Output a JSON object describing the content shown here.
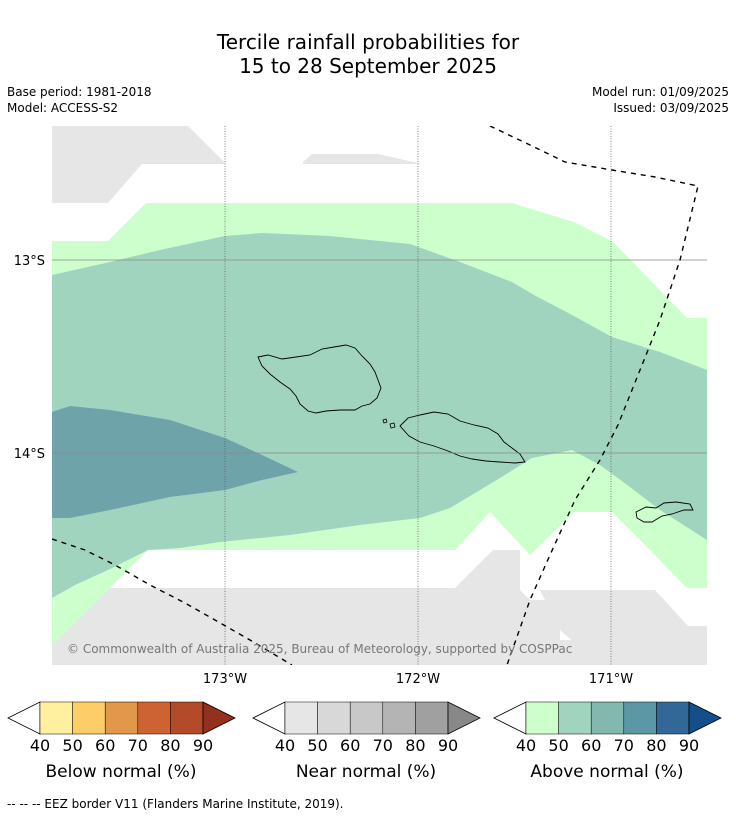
{
  "title_line1": "Tercile rainfall probabilities for",
  "title_line2": "15 to 28 September 2025",
  "base_period": "Base period: 1981-2018",
  "model": "Model: ACCESS-S2",
  "model_run": "Model run: 01/09/2025",
  "issued": "Issued: 03/09/2025",
  "copyright": "© Commonwealth of Australia 2025, Bureau of Meteorology, supported by COSPPac",
  "lat_labels": [
    "13°S",
    "14°S"
  ],
  "lon_labels": [
    "173°W",
    "172°W",
    "171°W"
  ],
  "colorbars": [
    {
      "label": "Below normal (%)",
      "ticks": [
        "40",
        "50",
        "60",
        "70",
        "80",
        "90"
      ],
      "colors": [
        "#ffffff",
        "#fff0a0",
        "#fdcd67",
        "#e2984a",
        "#cd6332",
        "#b34b2a",
        "#94301e"
      ]
    },
    {
      "label": "Near normal (%)",
      "ticks": [
        "40",
        "50",
        "60",
        "70",
        "80",
        "90"
      ],
      "colors": [
        "#ffffff",
        "#e6e6e6",
        "#d8d8d8",
        "#c8c8c8",
        "#b4b4b4",
        "#a0a0a0",
        "#888888"
      ]
    },
    {
      "label": "Above normal (%)",
      "ticks": [
        "40",
        "50",
        "60",
        "70",
        "80",
        "90"
      ],
      "colors": [
        "#ffffff",
        "#ccffcc",
        "#a1d4be",
        "#83b8ae",
        "#5b97a5",
        "#326897",
        "#154f89"
      ]
    }
  ],
  "footer": "--  --  -- EEZ border V11 (Flanders Marine Institute, 2019).",
  "colors": {
    "near_grey": "#e6e6e6",
    "above_40": "#ccffcc",
    "above_50": "#a1d4be",
    "above_60": "#6ea3aa"
  }
}
